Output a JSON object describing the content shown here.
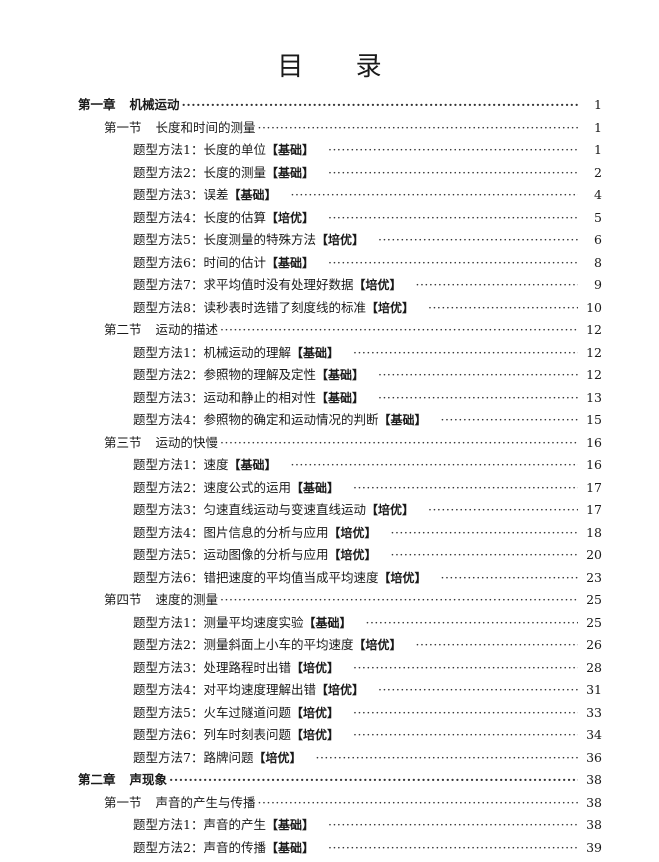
{
  "title": "目 录",
  "entries": [
    {
      "level": 0,
      "num": "第一章",
      "label": "机械运动",
      "tag": "",
      "page": "1"
    },
    {
      "level": 1,
      "num": "第一节",
      "label": "长度和时间的测量",
      "tag": "",
      "page": "1"
    },
    {
      "level": 2,
      "num": "题型方法1：",
      "label": "长度的单位",
      "tag": "【基础】",
      "page": "1"
    },
    {
      "level": 2,
      "num": "题型方法2：",
      "label": "长度的测量",
      "tag": "【基础】",
      "page": "2"
    },
    {
      "level": 2,
      "num": "题型方法3：",
      "label": "误差",
      "tag": "【基础】",
      "page": "4"
    },
    {
      "level": 2,
      "num": "题型方法4：",
      "label": "长度的估算",
      "tag": "【培优】",
      "page": "5"
    },
    {
      "level": 2,
      "num": "题型方法5：",
      "label": "长度测量的特殊方法",
      "tag": "【培优】",
      "page": "6"
    },
    {
      "level": 2,
      "num": "题型方法6：",
      "label": "时间的估计",
      "tag": "【基础】",
      "page": "8"
    },
    {
      "level": 2,
      "num": "题型方法7：",
      "label": "求平均值时没有处理好数据",
      "tag": "【培优】",
      "page": "9"
    },
    {
      "level": 2,
      "num": "题型方法8：",
      "label": "读秒表时选错了刻度线的标准",
      "tag": "【培优】",
      "page": "10"
    },
    {
      "level": 1,
      "num": "第二节",
      "label": "运动的描述",
      "tag": "",
      "page": "12"
    },
    {
      "level": 2,
      "num": "题型方法1：",
      "label": "机械运动的理解",
      "tag": "【基础】",
      "page": "12"
    },
    {
      "level": 2,
      "num": "题型方法2：",
      "label": "参照物的理解及定性",
      "tag": "【基础】",
      "page": "12"
    },
    {
      "level": 2,
      "num": "题型方法3：",
      "label": "运动和静止的相对性",
      "tag": "【基础】",
      "page": "13"
    },
    {
      "level": 2,
      "num": "题型方法4：",
      "label": "参照物的确定和运动情况的判断",
      "tag": "【基础】",
      "page": "15"
    },
    {
      "level": 1,
      "num": "第三节",
      "label": "运动的快慢",
      "tag": "",
      "page": "16"
    },
    {
      "level": 2,
      "num": "题型方法1：",
      "label": "速度",
      "tag": "【基础】",
      "page": "16"
    },
    {
      "level": 2,
      "num": "题型方法2：",
      "label": "速度公式的运用",
      "tag": "【基础】",
      "page": "17"
    },
    {
      "level": 2,
      "num": "题型方法3：",
      "label": "匀速直线运动与变速直线运动",
      "tag": "【培优】",
      "page": "17"
    },
    {
      "level": 2,
      "num": "题型方法4：",
      "label": "图片信息的分析与应用",
      "tag": "【培优】",
      "page": "18"
    },
    {
      "level": 2,
      "num": "题型方法5：",
      "label": "运动图像的分析与应用",
      "tag": "【培优】",
      "page": "20"
    },
    {
      "level": 2,
      "num": "题型方法6：",
      "label": "错把速度的平均值当成平均速度",
      "tag": "【培优】",
      "page": "23"
    },
    {
      "level": 1,
      "num": "第四节",
      "label": "速度的测量",
      "tag": "",
      "page": "25"
    },
    {
      "level": 2,
      "num": "题型方法1：",
      "label": "测量平均速度实验",
      "tag": "【基础】",
      "page": "25"
    },
    {
      "level": 2,
      "num": "题型方法2：",
      "label": "测量斜面上小车的平均速度",
      "tag": "【培优】",
      "page": "26"
    },
    {
      "level": 2,
      "num": "题型方法3：",
      "label": "处理路程时出错",
      "tag": "【培优】",
      "page": "28"
    },
    {
      "level": 2,
      "num": "题型方法4：",
      "label": "对平均速度理解出错",
      "tag": "【培优】",
      "page": "31"
    },
    {
      "level": 2,
      "num": "题型方法5：",
      "label": "火车过隧道问题",
      "tag": "【培优】",
      "page": "33"
    },
    {
      "level": 2,
      "num": "题型方法6：",
      "label": "列车时刻表问题",
      "tag": "【培优】",
      "page": "34"
    },
    {
      "level": 2,
      "num": "题型方法7：",
      "label": "路牌问题",
      "tag": "【培优】",
      "page": "36"
    },
    {
      "level": 0,
      "num": "第二章",
      "label": "声现象",
      "tag": "",
      "page": "38"
    },
    {
      "level": 1,
      "num": "第一节",
      "label": "声音的产生与传播",
      "tag": "",
      "page": "38"
    },
    {
      "level": 2,
      "num": "题型方法1：",
      "label": "声音的产生",
      "tag": "【基础】",
      "page": "38"
    },
    {
      "level": 2,
      "num": "题型方法2：",
      "label": "声音的传播",
      "tag": "【基础】",
      "page": "39"
    }
  ]
}
